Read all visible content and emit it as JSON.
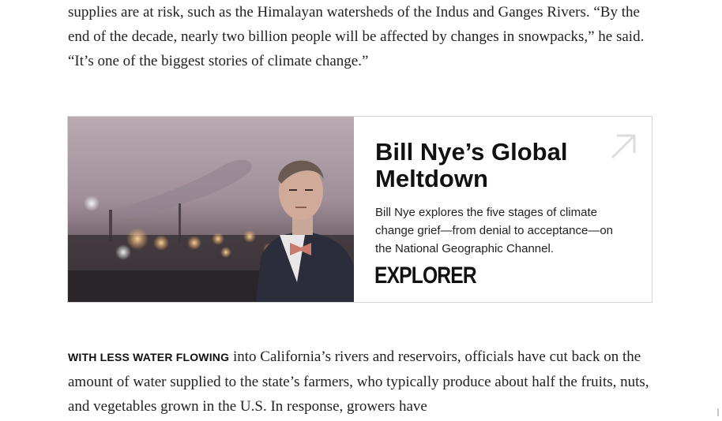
{
  "article": {
    "paragraph_top": "supplies are at risk, such as the Himalayan watersheds of the Indus and Ganges Rivers. “By the end of the decade, nearly two billion people will be affected by changes in snowpacks,” he said. “It’s one of the biggest stories of climate change.”",
    "paragraph_bottom_lede": "WITH LESS WATER FLOWING",
    "paragraph_bottom_text": " into California’s rivers and reservoirs, officials have cut back on the amount of water supplied to the state’s farmers, who typically produce about half the fruits, nuts, and vegetables grown in the U.S. In response, growers have"
  },
  "promo": {
    "title": "Bill Nye’s Global Meltdown",
    "description": "Bill Nye explores the five stages of climate change grief—from denial to acceptance—on the National Geographic Channel.",
    "brand": "EXPLORER",
    "icon": "arrow-up-right-icon"
  }
}
